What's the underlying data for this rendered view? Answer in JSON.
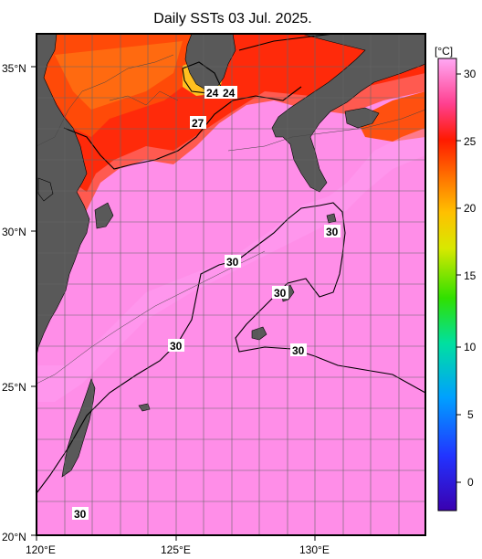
{
  "title": "Daily SSTs 03 Jul. 2025.",
  "axes": {
    "lat_labels": [
      "35°N",
      "30°N",
      "25°N",
      "20°N"
    ],
    "lon_labels": [
      "120°E",
      "125°E",
      "130°E"
    ]
  },
  "colorbar": {
    "unit": "[°C]",
    "ticks": [
      "30",
      "25",
      "20",
      "15",
      "10",
      "5",
      "0"
    ],
    "range": [
      -2,
      32
    ],
    "colors": [
      "#3a00b0",
      "#2a5cff",
      "#00c8ff",
      "#00e070",
      "#9be000",
      "#ffe000",
      "#ff9a00",
      "#ff2a00",
      "#ff4fa0",
      "#ff8ee0",
      "#ffa6f0"
    ]
  },
  "contour_labels": [
    "24",
    "24",
    "27",
    "30",
    "30",
    "30",
    "30",
    "30",
    "30"
  ],
  "colors": {
    "land": "#595959",
    "warm_sea": "#ff8ce8",
    "hot_sea": "#ff2a00"
  }
}
